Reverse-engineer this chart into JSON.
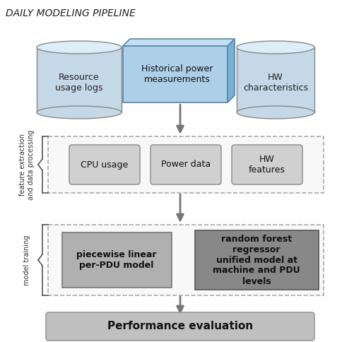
{
  "title": "DAILY MODELING PIPELINE",
  "bg_color": "#ffffff",
  "cylinder_color": "#c5d8e8",
  "cylinder_top_color": "#ddeef8",
  "cylinder_edge_color": "#888888",
  "hist_face_color": "#aecfe8",
  "hist_top_color": "#c5dff0",
  "hist_side_color": "#7ab0d4",
  "hist_edge_color": "#5588aa",
  "hist_label": "Historical power\nmeasurements",
  "feature_box_color": "#d0d0d0",
  "feature_box_edge": "#999999",
  "feature_labels": [
    "CPU usage",
    "Power data",
    "HW\nfeatures"
  ],
  "piecewise_box_color": "#b0b0b0",
  "piecewise_edge": "#777777",
  "piecewise_label": "piecewise linear\nper-PDU model",
  "rf_box_color": "#888888",
  "rf_edge": "#555555",
  "rf_label": "random forest\nregressor\nunified model at\nmachine and PDU\nlevels",
  "dashed_box_edge": "#aaaaaa",
  "dashed_box_face": "#f8f8f8",
  "perf_box_color": "#c0c0c0",
  "perf_box_edge": "#999999",
  "perf_label": "Performance evaluation",
  "arrow_color": "#777777",
  "side_label_color": "#333333"
}
